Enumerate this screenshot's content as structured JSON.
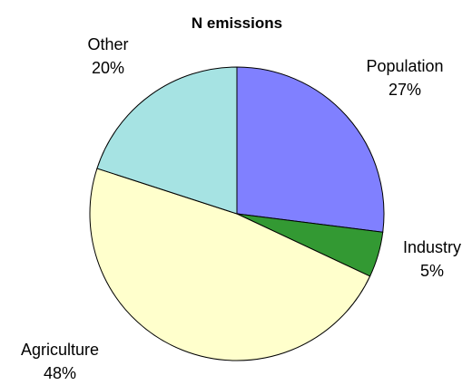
{
  "chart_data": {
    "type": "pie",
    "title": "N emissions",
    "start_angle_deg": 0,
    "direction": "clockwise",
    "slices": [
      {
        "label": "Population",
        "value": 27,
        "value_label": "27%",
        "color": "#8080FF"
      },
      {
        "label": "Industry",
        "value": 5,
        "value_label": "5%",
        "color": "#339933"
      },
      {
        "label": "Agriculture",
        "value": 48,
        "value_label": "48%",
        "color": "#FFFFCC"
      },
      {
        "label": "Other",
        "value": 20,
        "value_label": "20%",
        "color": "#A6E3E3"
      }
    ]
  }
}
